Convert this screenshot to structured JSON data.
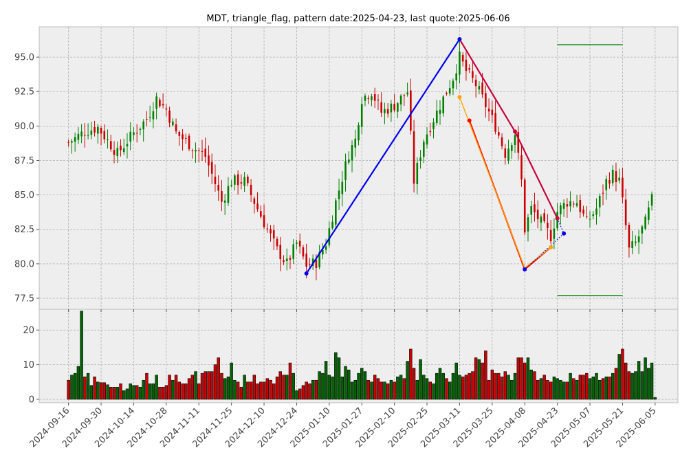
{
  "chart_data": {
    "type": "candlestick",
    "title": "MDT, triangle_flag, pattern date:2025-04-23, last quote:2025-06-06",
    "price_panel": {
      "ylim": [
        76.7,
        97.2
      ],
      "yticks": [
        77.5,
        80.0,
        82.5,
        85.0,
        87.5,
        90.0,
        92.5,
        95.0
      ],
      "ytick_labels": [
        "77.5",
        "80.0",
        "82.5",
        "85.0",
        "87.5",
        "90.0",
        "92.5",
        "95.0"
      ],
      "grid": true
    },
    "volume_panel": {
      "ylim": [
        -1,
        26
      ],
      "yticks": [
        0,
        10,
        20
      ],
      "ytick_labels": [
        "0",
        "10",
        "20"
      ],
      "grid": true
    },
    "x_range_index": [
      -9,
      187
    ],
    "xticks": [
      {
        "label": "2024-09-16",
        "index": 0
      },
      {
        "label": "2024-09-30",
        "index": 10
      },
      {
        "label": "2024-10-14",
        "index": 20
      },
      {
        "label": "2024-10-28",
        "index": 30
      },
      {
        "label": "2024-11-11",
        "index": 40
      },
      {
        "label": "2024-11-25",
        "index": 50
      },
      {
        "label": "2024-12-10",
        "index": 60
      },
      {
        "label": "2024-12-24",
        "index": 70
      },
      {
        "label": "2025-01-10",
        "index": 80
      },
      {
        "label": "2025-01-27",
        "index": 90
      },
      {
        "label": "2025-02-10",
        "index": 100
      },
      {
        "label": "2025-02-25",
        "index": 110
      },
      {
        "label": "2025-03-11",
        "index": 120
      },
      {
        "label": "2025-03-25",
        "index": 130
      },
      {
        "label": "2025-04-08",
        "index": 140
      },
      {
        "label": "2025-04-23",
        "index": 150
      },
      {
        "label": "2025-05-07",
        "index": 160
      },
      {
        "label": "2025-05-21",
        "index": 170
      },
      {
        "label": "2025-06-05",
        "index": 180
      }
    ],
    "anchors": [
      {
        "index": 0,
        "price": 88.8
      },
      {
        "index": 5,
        "price": 89.6
      },
      {
        "index": 9,
        "price": 89.9
      },
      {
        "index": 15,
        "price": 88.0
      },
      {
        "index": 20,
        "price": 89.5
      },
      {
        "index": 24,
        "price": 90.5
      },
      {
        "index": 27,
        "price": 92.0
      },
      {
        "index": 30,
        "price": 91.2
      },
      {
        "index": 33,
        "price": 89.5
      },
      {
        "index": 38,
        "price": 88.5
      },
      {
        "index": 42,
        "price": 87.8
      },
      {
        "index": 44,
        "price": 86.5
      },
      {
        "index": 47,
        "price": 84.5
      },
      {
        "index": 50,
        "price": 86.0
      },
      {
        "index": 54,
        "price": 86.0
      },
      {
        "index": 57,
        "price": 84.5
      },
      {
        "index": 60,
        "price": 83.0
      },
      {
        "index": 64,
        "price": 81.0
      },
      {
        "index": 67,
        "price": 80.0
      },
      {
        "index": 70,
        "price": 81.5
      },
      {
        "index": 73,
        "price": 79.9
      },
      {
        "index": 76,
        "price": 80.1
      },
      {
        "index": 79,
        "price": 81.5
      },
      {
        "index": 82,
        "price": 84.5
      },
      {
        "index": 86,
        "price": 88.0
      },
      {
        "index": 88,
        "price": 89.0
      },
      {
        "index": 90,
        "price": 92.0
      },
      {
        "index": 93,
        "price": 92.5
      },
      {
        "index": 96,
        "price": 91.0
      },
      {
        "index": 100,
        "price": 91.5
      },
      {
        "index": 104,
        "price": 92.5
      },
      {
        "index": 106,
        "price": 86.0
      },
      {
        "index": 109,
        "price": 89.0
      },
      {
        "index": 112,
        "price": 90.5
      },
      {
        "index": 115,
        "price": 92.0
      },
      {
        "index": 118,
        "price": 93.5
      },
      {
        "index": 120,
        "price": 95.0
      },
      {
        "index": 122,
        "price": 94.0
      },
      {
        "index": 125,
        "price": 93.0
      },
      {
        "index": 128,
        "price": 91.5
      },
      {
        "index": 131,
        "price": 90.0
      },
      {
        "index": 134,
        "price": 88.0
      },
      {
        "index": 137,
        "price": 89.5
      },
      {
        "index": 139,
        "price": 86.0
      },
      {
        "index": 140,
        "price": 82.5
      },
      {
        "index": 142,
        "price": 84.0
      },
      {
        "index": 145,
        "price": 83.0
      },
      {
        "index": 148,
        "price": 82.0
      },
      {
        "index": 150,
        "price": 83.8
      },
      {
        "index": 153,
        "price": 84.5
      },
      {
        "index": 156,
        "price": 84.5
      },
      {
        "index": 159,
        "price": 83.0
      },
      {
        "index": 162,
        "price": 84.0
      },
      {
        "index": 165,
        "price": 86.0
      },
      {
        "index": 167,
        "price": 86.5
      },
      {
        "index": 169,
        "price": 86.0
      },
      {
        "index": 170,
        "price": 84.5
      },
      {
        "index": 172,
        "price": 81.0
      },
      {
        "index": 174,
        "price": 81.5
      },
      {
        "index": 177,
        "price": 83.0
      },
      {
        "index": 180,
        "price": 85.5
      },
      {
        "index": 182,
        "price": 87.2
      }
    ],
    "volume_bars": [
      5.5,
      7,
      7.5,
      9.5,
      25.5,
      6.5,
      7.5,
      4,
      6.5,
      5,
      4.8,
      4.8,
      4.2,
      3.5,
      3.5,
      3.5,
      4.5,
      2.5,
      3,
      4.5,
      4,
      4,
      3.5,
      5.5,
      7.5,
      4.5,
      4.5,
      7,
      3.5,
      3.5,
      4,
      7,
      5.5,
      7,
      5,
      4.5,
      4.5,
      6,
      7,
      8,
      4.5,
      7.5,
      8,
      8,
      8,
      10,
      12,
      7.5,
      6,
      6.5,
      10.5,
      5.5,
      5,
      3.5,
      7,
      5,
      5,
      7,
      4.5,
      5,
      5,
      6,
      5.5,
      4.5,
      6.5,
      8,
      7,
      7,
      10.5,
      7.5,
      2.5,
      3,
      4,
      5,
      4.5,
      5.5,
      5.5,
      8,
      7.5,
      11,
      7,
      6.5,
      13.5,
      12,
      6.5,
      9.5,
      8.5,
      5,
      5.5,
      7.5,
      9,
      8,
      5.5,
      5,
      7,
      6,
      5,
      5,
      4.5,
      5.5,
      5,
      6.5,
      7,
      6,
      11,
      14.5,
      9,
      5.5,
      11.5,
      7,
      6,
      5,
      4.5,
      7.5,
      9,
      7.5,
      6,
      5,
      7.5,
      10.5,
      7,
      6.5,
      7,
      7.5,
      8,
      12,
      11.5,
      10.5,
      14,
      5.5,
      8.5,
      7.5,
      7.5,
      6.5,
      8,
      7,
      5.5,
      7.5,
      12,
      12,
      10.5,
      12,
      8.5,
      8,
      5.5,
      6,
      7,
      5.5,
      5,
      6.5,
      6,
      5.5,
      5,
      5,
      7.5,
      6,
      5.5,
      7,
      7,
      7.5,
      6,
      6.5,
      7.5,
      5.5,
      6,
      6.5,
      6.5,
      7.5,
      9,
      13,
      14.5,
      10.5,
      8,
      7.5,
      8,
      11,
      8,
      12,
      9,
      10.5,
      0.5
    ],
    "pattern_lines": [
      {
        "name": "blue",
        "color": "#0000ee",
        "style": "solid",
        "points": [
          [
            73,
            79.3
          ],
          [
            120,
            96.3
          ]
        ]
      },
      {
        "name": "crimson",
        "color": "#c8003c",
        "style": "solid",
        "points": [
          [
            120,
            96.3
          ],
          [
            137,
            89.6
          ],
          [
            150,
            83.3
          ]
        ]
      },
      {
        "name": "red",
        "color": "#ff0000",
        "style": "solid",
        "points": [
          [
            123,
            90.4
          ],
          [
            140,
            79.6
          ],
          [
            148,
            81.2
          ]
        ]
      },
      {
        "name": "orange",
        "color": "#ffa500",
        "style": "solid",
        "points": [
          [
            120,
            92.1
          ],
          [
            140,
            79.7
          ],
          [
            148,
            81.2
          ]
        ]
      },
      {
        "name": "blue-dotted",
        "color": "#0000ee",
        "style": "dotted",
        "points": [
          [
            150,
            83.3
          ],
          [
            152,
            82.2
          ],
          [
            140,
            79.6
          ]
        ]
      }
    ],
    "pattern_markers": [
      {
        "color": "#0000ee",
        "points": [
          [
            73,
            79.3
          ],
          [
            120,
            96.3
          ],
          [
            140,
            79.6
          ],
          [
            152,
            82.2
          ]
        ]
      },
      {
        "color": "#c8003c",
        "points": [
          [
            137,
            89.6
          ],
          [
            150,
            83.3
          ]
        ]
      },
      {
        "color": "#ff0000",
        "points": [
          [
            123,
            90.4
          ]
        ]
      },
      {
        "color": "#ffa500",
        "points": [
          [
            120,
            92.1
          ],
          [
            148,
            81.2
          ]
        ]
      }
    ],
    "target_lines": [
      {
        "color": "#008000",
        "x": [
          150,
          170
        ],
        "y": 95.9
      },
      {
        "color": "#008000",
        "x": [
          150,
          170
        ],
        "y": 77.7
      }
    ],
    "colors": {
      "up": "#008000",
      "down": "#cc0000",
      "panel_bg": "#eeeeee",
      "grid": "#b0b0b0"
    }
  }
}
